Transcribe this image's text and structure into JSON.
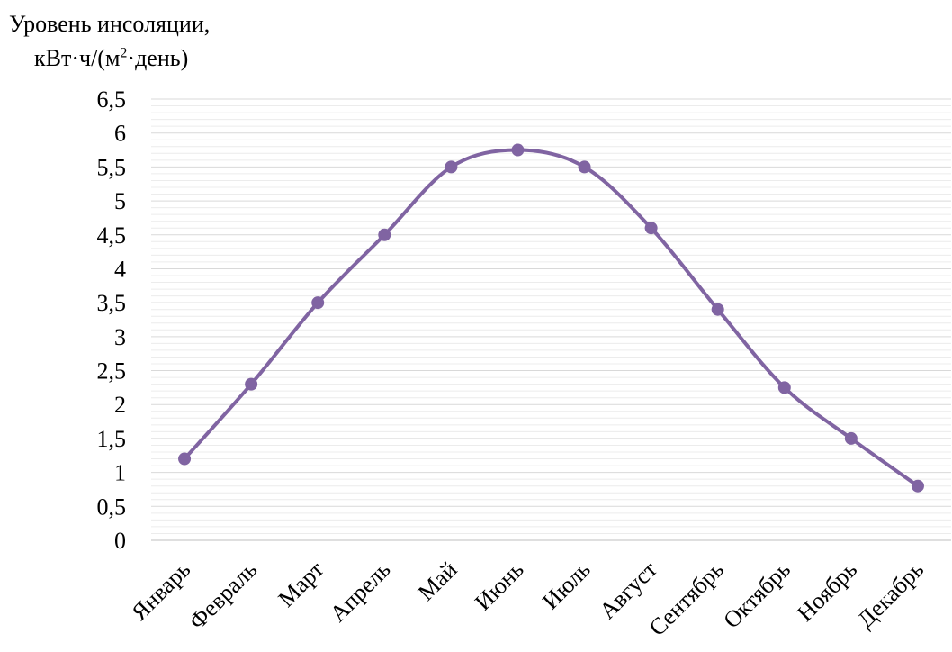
{
  "chart_data": {
    "type": "line",
    "title": "",
    "xlabel": "",
    "ylabel": {
      "line1": "Уровень инсоляции,",
      "line2_before_sup": "кВт·ч/(м",
      "line2_sup": "2",
      "line2_after_sup": "·день)"
    },
    "categories": [
      "Январь",
      "Февраль",
      "Март",
      "Апрель",
      "Май",
      "Июнь",
      "Июль",
      "Август",
      "Сентябрь",
      "Октябрь",
      "Ноябрь",
      "Декабрь"
    ],
    "series": [
      {
        "values": [
          1.2,
          2.3,
          3.5,
          4.5,
          5.5,
          5.75,
          5.5,
          4.6,
          3.4,
          2.25,
          1.5,
          0.8
        ]
      }
    ],
    "ylim": [
      0,
      6.5
    ],
    "yticks": [
      "0",
      "0,5",
      "1",
      "1,5",
      "2",
      "2,5",
      "3",
      "3,5",
      "4",
      "4,5",
      "5",
      "5,5",
      "6",
      "6,5"
    ],
    "ytick_values": [
      0,
      0.5,
      1,
      1.5,
      2,
      2.5,
      3,
      3.5,
      4,
      4.5,
      5,
      5.5,
      6,
      6.5
    ],
    "minor_grid_step": 0.1,
    "grid": true,
    "smooth": true,
    "legend": "none",
    "colors": {
      "line": "#8064a2",
      "grid": "#d9d9d9",
      "axis": "#bfbfbf"
    }
  }
}
